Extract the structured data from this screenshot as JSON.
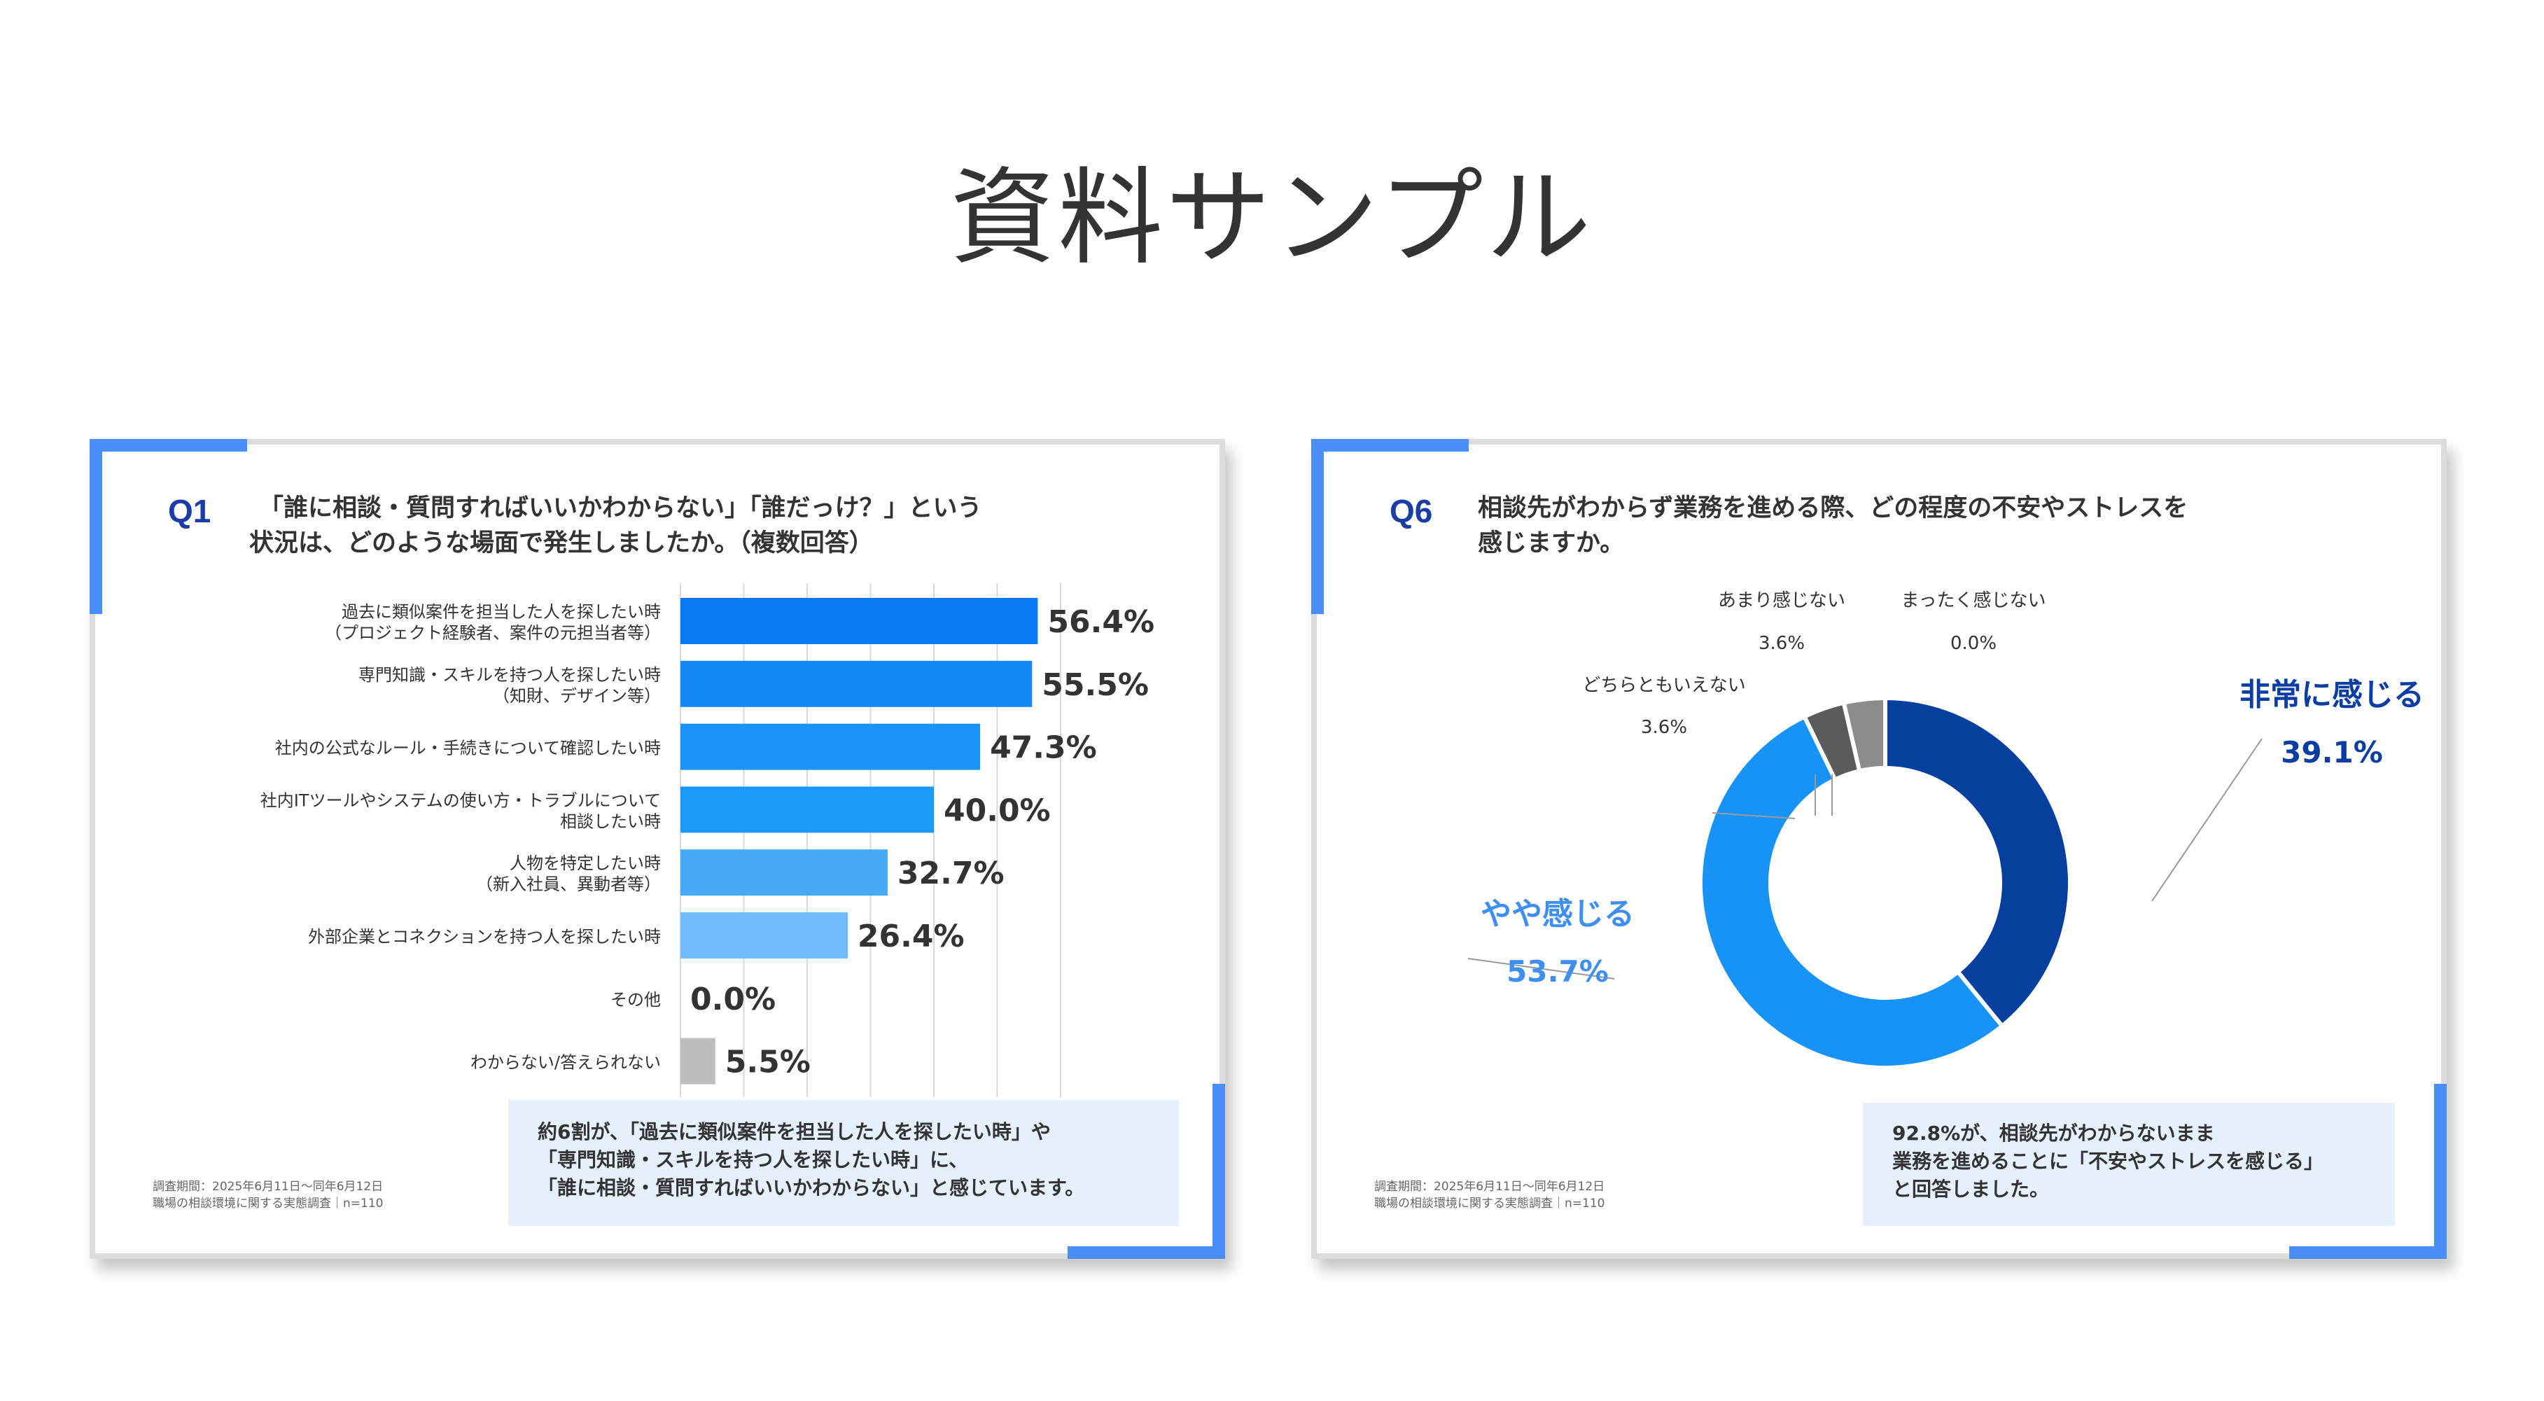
{
  "page": {
    "title": "資料サンプル"
  },
  "colors": {
    "accent": "#4a8ef7",
    "q_number": "#1a3da6",
    "summary_bg": "#e6f0fc",
    "bar_shades": [
      "#0b78f4",
      "#1489f5",
      "#1a93f8",
      "#1c98f7",
      "#46a9f9",
      "#6ebcfb",
      "#6ebcfb",
      "#bdbdbd"
    ],
    "donut_strong": "#063f9e",
    "donut_somewhat": "#1792f6",
    "donut_neutral": "#5b5b5b",
    "donut_little": "#8c8c8c",
    "label_strong": "#0a3ea3",
    "label_somewhat": "#3f8ff0"
  },
  "q1": {
    "number": "Q1",
    "question_lines": [
      "「誰に相談・質問すればいいかわからない」「誰だっけ？」という",
      "状況は、どのような場面で発生しましたか。（複数回答）"
    ],
    "survey_note_lines": [
      "調査期間：2025年6月11日〜同年6月12日",
      "職場の相談環境に関する実態調査｜n=110"
    ],
    "summary_lines": [
      "約6割が、「過去に類似案件を担当した人を探したい時」や",
      "「専門知識・スキルを持つ人を探したい時」に、",
      "「誰に相談・質問すればいいかわからない」と感じています。"
    ]
  },
  "q6": {
    "number": "Q6",
    "question_lines": [
      "相談先がわからず業務を進める際、どの程度の不安やストレスを",
      "感じますか。"
    ],
    "survey_note_lines": [
      "調査期間：2025年6月11日〜同年6月12日",
      "職場の相談環境に関する実態調査｜n=110"
    ],
    "summary_lines": [
      "92.8%が、相談先がわからないまま",
      "業務を進めることに「不安やストレスを感じる」",
      "と回答しました。"
    ]
  },
  "chart_data": [
    {
      "type": "bar",
      "orientation": "horizontal",
      "title": "「誰に相談・質問すればいいかわからない」「誰だっけ？」という状況は、どのような場面で発生しましたか。（複数回答）",
      "categories": [
        [
          "過去に類似案件を担当した人を探したい時",
          "（プロジェクト経験者、案件の元担当者等）"
        ],
        [
          "専門知識・スキルを持つ人を探したい時",
          "（知財、デザイン等）"
        ],
        [
          "社内の公式なルール・手続きについて確認したい時"
        ],
        [
          "社内ITツールやシステムの使い方・トラブルについて",
          "相談したい時"
        ],
        [
          "人物を特定したい時",
          "（新入社員、異動者等）"
        ],
        [
          "外部企業とコネクションを持つ人を探したい時"
        ],
        [
          "その他"
        ],
        [
          "わからない/答えられない"
        ]
      ],
      "values": [
        56.4,
        55.5,
        47.3,
        40.0,
        32.7,
        26.4,
        0.0,
        5.5
      ],
      "value_labels": [
        "56.4%",
        "55.5%",
        "47.3%",
        "40.0%",
        "32.7%",
        "26.4%",
        "0.0%",
        "5.5%"
      ],
      "unit": "%",
      "xlim": [
        0,
        60
      ],
      "grid": true,
      "xlabel": "",
      "ylabel": ""
    },
    {
      "type": "pie",
      "variant": "donut",
      "title": "相談先がわからず業務を進める際、どの程度の不安やストレスを感じますか。",
      "slices": [
        {
          "label": "非常に感じる",
          "value": 39.1,
          "value_label": "39.1%"
        },
        {
          "label": "やや感じる",
          "value": 53.7,
          "value_label": "53.7%"
        },
        {
          "label": "どちらともいえない",
          "value": 3.6,
          "value_label": "3.6%"
        },
        {
          "label": "あまり感じない",
          "value": 3.6,
          "value_label": "3.6%"
        },
        {
          "label": "まったく感じない",
          "value": 0.0,
          "value_label": "0.0%"
        }
      ],
      "start": "top",
      "direction": "clockwise"
    }
  ]
}
